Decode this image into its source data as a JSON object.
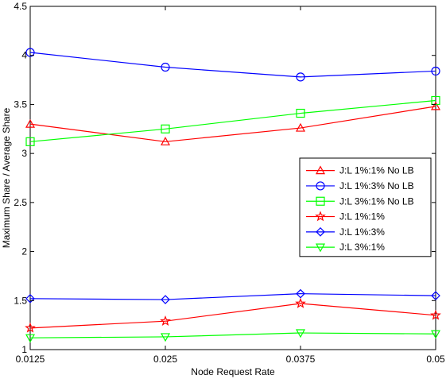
{
  "chart_data": {
    "type": "line",
    "xlabel": "Node Request Rate",
    "ylabel": "Maximum Share / Average Share",
    "xlim": [
      0.0125,
      0.05
    ],
    "ylim": [
      1,
      4.5
    ],
    "xticks": [
      "0.0125",
      "0.025",
      "0.0375",
      "0.05"
    ],
    "yticks": [
      "1",
      "1.5",
      "2",
      "2.5",
      "3",
      "3.5",
      "4",
      "4.5"
    ],
    "grid": false,
    "legend_position": "right-middle",
    "x": [
      0.0125,
      0.025,
      0.0375,
      0.05
    ],
    "series": [
      {
        "name": "J:L 1%:1% No LB",
        "color": "#ff0000",
        "marker": "triangle-up",
        "values": [
          3.3,
          3.12,
          3.26,
          3.48
        ]
      },
      {
        "name": "J:L 1%:3% No LB",
        "color": "#0000ff",
        "marker": "circle",
        "values": [
          4.03,
          3.88,
          3.78,
          3.84
        ]
      },
      {
        "name": "J:L 3%:1% No LB",
        "color": "#00ff00",
        "marker": "square",
        "values": [
          3.12,
          3.25,
          3.41,
          3.54
        ]
      },
      {
        "name": "J:L 1%:1%",
        "color": "#ff0000",
        "marker": "star",
        "values": [
          1.22,
          1.29,
          1.47,
          1.35
        ]
      },
      {
        "name": "J:L 1%:3%",
        "color": "#0000ff",
        "marker": "diamond",
        "values": [
          1.52,
          1.51,
          1.57,
          1.55
        ]
      },
      {
        "name": "J:L 3%:1%",
        "color": "#00ff00",
        "marker": "triangle-down",
        "values": [
          1.12,
          1.13,
          1.17,
          1.16
        ]
      }
    ]
  }
}
